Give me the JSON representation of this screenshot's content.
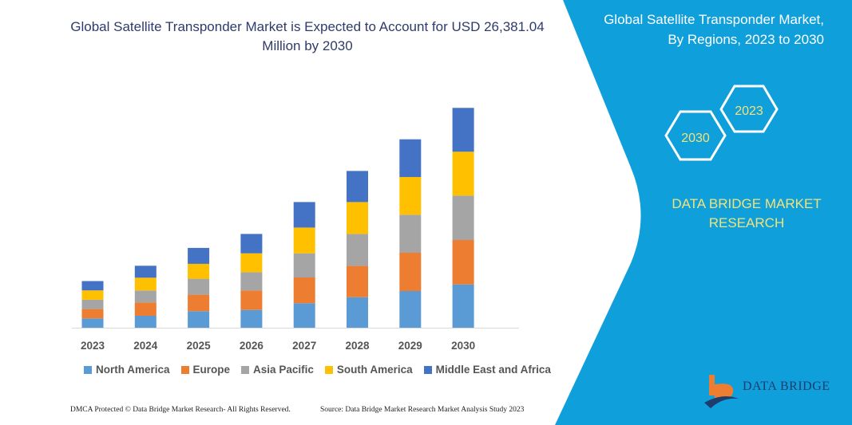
{
  "title": "Global Satellite Transponder Market is Expected to Account for USD 26,381.04 Million by 2030",
  "side_panel": {
    "title": "Global Satellite Transponder Market, By Regions, 2023 to 2030",
    "hex_labels": [
      "2023",
      "2030"
    ],
    "brand": "DATA BRIDGE MARKET RESEARCH",
    "logo_text": "DATA BRIDGE",
    "panel_color": "#0f9fdb"
  },
  "footer": {
    "left": "DMCA Protected © Data Bridge Market Research- All Rights Reserved.",
    "right": "Source: Data Bridge Market Research Market Analysis Study 2023"
  },
  "chart_data": {
    "type": "bar",
    "stacked": true,
    "note_units": "relative (no value axis shown)",
    "categories": [
      "2023",
      "2024",
      "2025",
      "2026",
      "2027",
      "2028",
      "2029",
      "2030"
    ],
    "series": [
      {
        "name": "North America",
        "color": "#5b9bd5",
        "values": [
          11.7,
          15,
          20.7,
          22.3,
          30.7,
          38.3,
          46,
          54.3
        ]
      },
      {
        "name": "Europe",
        "color": "#ed7d31",
        "values": [
          11.7,
          16.7,
          20.7,
          24.3,
          32.3,
          39.3,
          48,
          55.7
        ]
      },
      {
        "name": "Asia Pacific",
        "color": "#a5a5a5",
        "values": [
          11.7,
          15,
          20,
          23,
          30.3,
          40,
          47.7,
          55.7
        ]
      },
      {
        "name": "South America",
        "color": "#ffc000",
        "values": [
          11.7,
          16,
          18.7,
          23.7,
          32.3,
          40,
          47.3,
          55
        ]
      },
      {
        "name": "Middle East and Africa",
        "color": "#4472c4",
        "values": [
          11.7,
          15,
          20,
          24.3,
          32,
          39,
          47.3,
          55
        ]
      }
    ],
    "legend": "bottom",
    "grid": false
  }
}
